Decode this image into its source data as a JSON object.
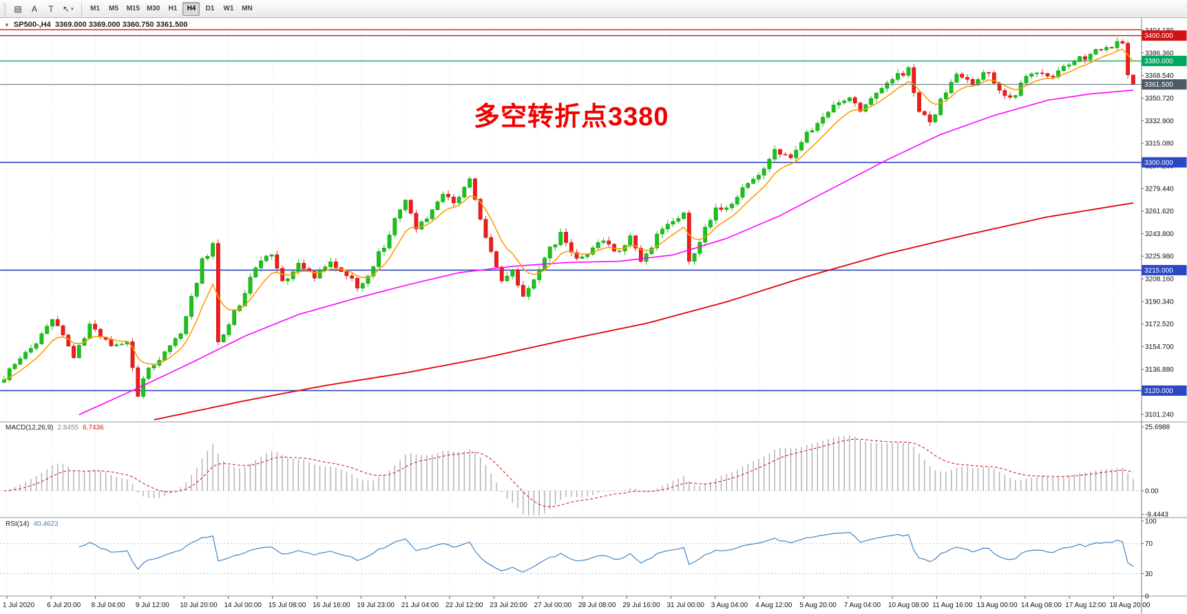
{
  "toolbar": {
    "tools": [
      {
        "name": "chart-window-icon",
        "glyph": "▤"
      },
      {
        "name": "text-annotation-button",
        "glyph": "A"
      },
      {
        "name": "textbox-button",
        "glyph": "T"
      },
      {
        "name": "cursor-tool-button",
        "glyph": "↖",
        "dropdown": "▾"
      }
    ],
    "timeframes": [
      {
        "label": "M1"
      },
      {
        "label": "M5"
      },
      {
        "label": "M15"
      },
      {
        "label": "M30"
      },
      {
        "label": "H1"
      },
      {
        "label": "H4",
        "active": true
      },
      {
        "label": "D1"
      },
      {
        "label": "W1"
      },
      {
        "label": "MN"
      }
    ]
  },
  "chart": {
    "collapse_icon": "▼",
    "header": "SP500-,H4  3369.000 3369.000 3360.750 3361.500",
    "annotation": "多空转折点3380"
  },
  "chart_data": {
    "type": "candlestick",
    "symbol": "SP500-",
    "timeframe": "H4",
    "last_ohlc": {
      "open": 3369.0,
      "high": 3369.0,
      "low": 3360.75,
      "close": 3361.5
    },
    "bars": 212,
    "up_color": "#19c319",
    "up_stroke": "#0e9a0e",
    "down_color": "#ef1c1c",
    "down_stroke": "#c01010",
    "price_axis_ticks": [
      "3404.180",
      "3386.360",
      "3368.540",
      "3350.720",
      "3332.900",
      "3315.080",
      "3297.260",
      "3279.440",
      "3261.620",
      "3243.800",
      "3225.980",
      "3208.160",
      "3190.340",
      "3172.520",
      "3154.700",
      "3136.880",
      "3119.060",
      "3101.240"
    ],
    "horizontal_lines": [
      {
        "price": 3404.6,
        "color": "#cf1212",
        "badge": null
      },
      {
        "price": 3400.0,
        "color": "#cf1212",
        "badge": "3400.000"
      },
      {
        "price": 3380.0,
        "color": "#00a85f",
        "badge": "3380.000"
      },
      {
        "price": 3300.0,
        "color": "#2b47c4",
        "badge": "3300.000"
      },
      {
        "price": 3215.0,
        "color": "#2b47c4",
        "badge": "3215.000"
      },
      {
        "price": 3120.0,
        "color": "#2b47c4",
        "badge": "3120.000"
      }
    ],
    "current_price": {
      "value": 3361.5,
      "badge": "3361.500",
      "color": "#4e5b66"
    },
    "price_waypoints": [
      [
        0,
        3130
      ],
      [
        3,
        3146
      ],
      [
        6,
        3158
      ],
      [
        9,
        3178
      ],
      [
        11,
        3165
      ],
      [
        13,
        3147
      ],
      [
        16,
        3170
      ],
      [
        18,
        3162
      ],
      [
        20,
        3155
      ],
      [
        23,
        3158
      ],
      [
        25,
        3116
      ],
      [
        26,
        3130
      ],
      [
        28,
        3141
      ],
      [
        30,
        3152
      ],
      [
        33,
        3165
      ],
      [
        35,
        3192
      ],
      [
        37,
        3222
      ],
      [
        39,
        3235
      ],
      [
        40,
        3157
      ],
      [
        42,
        3172
      ],
      [
        45,
        3198
      ],
      [
        47,
        3218
      ],
      [
        50,
        3228
      ],
      [
        52,
        3206
      ],
      [
        55,
        3218
      ],
      [
        58,
        3211
      ],
      [
        61,
        3222
      ],
      [
        64,
        3212
      ],
      [
        66,
        3201
      ],
      [
        68,
        3212
      ],
      [
        71,
        3235
      ],
      [
        73,
        3255
      ],
      [
        75,
        3268
      ],
      [
        77,
        3249
      ],
      [
        80,
        3262
      ],
      [
        82,
        3275
      ],
      [
        84,
        3268
      ],
      [
        87,
        3288
      ],
      [
        89,
        3256
      ],
      [
        91,
        3228
      ],
      [
        93,
        3206
      ],
      [
        95,
        3213
      ],
      [
        97,
        3196
      ],
      [
        100,
        3216
      ],
      [
        102,
        3232
      ],
      [
        104,
        3243
      ],
      [
        107,
        3222
      ],
      [
        109,
        3230
      ],
      [
        112,
        3238
      ],
      [
        114,
        3228
      ],
      [
        117,
        3241
      ],
      [
        119,
        3223
      ],
      [
        122,
        3241
      ],
      [
        124,
        3252
      ],
      [
        127,
        3258
      ],
      [
        128,
        3222
      ],
      [
        131,
        3248
      ],
      [
        133,
        3262
      ],
      [
        136,
        3269
      ],
      [
        139,
        3283
      ],
      [
        142,
        3296
      ],
      [
        144,
        3308
      ],
      [
        147,
        3306
      ],
      [
        150,
        3322
      ],
      [
        152,
        3331
      ],
      [
        155,
        3343
      ],
      [
        158,
        3353
      ],
      [
        160,
        3339
      ],
      [
        163,
        3353
      ],
      [
        166,
        3366
      ],
      [
        169,
        3373
      ],
      [
        171,
        3341
      ],
      [
        173,
        3332
      ],
      [
        176,
        3356
      ],
      [
        178,
        3368
      ],
      [
        181,
        3362
      ],
      [
        183,
        3373
      ],
      [
        186,
        3359
      ],
      [
        188,
        3349
      ],
      [
        191,
        3366
      ],
      [
        193,
        3373
      ],
      [
        196,
        3369
      ],
      [
        199,
        3379
      ],
      [
        202,
        3383
      ],
      [
        205,
        3389
      ],
      [
        207,
        3392
      ],
      [
        209,
        3396
      ],
      [
        210,
        3369
      ],
      [
        211,
        3361.5
      ]
    ],
    "overlays": {
      "ema_fast": {
        "color": "#ff9c00",
        "period": 8
      },
      "ma_mid": {
        "color": "#ff00ff",
        "waypoints": [
          [
            14,
            3101
          ],
          [
            25,
            3122
          ],
          [
            35,
            3142
          ],
          [
            45,
            3163
          ],
          [
            55,
            3180
          ],
          [
            65,
            3192
          ],
          [
            75,
            3203
          ],
          [
            85,
            3213
          ],
          [
            95,
            3218
          ],
          [
            105,
            3221
          ],
          [
            115,
            3222
          ],
          [
            125,
            3227
          ],
          [
            135,
            3240
          ],
          [
            145,
            3258
          ],
          [
            155,
            3280
          ],
          [
            165,
            3302
          ],
          [
            175,
            3322
          ],
          [
            185,
            3337
          ],
          [
            195,
            3349
          ],
          [
            203,
            3354
          ],
          [
            211,
            3357
          ]
        ]
      },
      "ma_slow": {
        "color": "#e00000",
        "waypoints": [
          [
            28,
            3097
          ],
          [
            45,
            3112
          ],
          [
            60,
            3124
          ],
          [
            75,
            3134
          ],
          [
            90,
            3146
          ],
          [
            105,
            3160
          ],
          [
            120,
            3173
          ],
          [
            135,
            3190
          ],
          [
            150,
            3210
          ],
          [
            165,
            3228
          ],
          [
            180,
            3243
          ],
          [
            195,
            3257
          ],
          [
            211,
            3268
          ]
        ]
      }
    },
    "macd": {
      "label": "MACD(12,26,9)",
      "value_main": "2.8455",
      "value_signal": "6.7436",
      "axis_ticks": [
        "25.6988",
        "0.00",
        "-9.4443"
      ],
      "histogram_color": "#adadad",
      "signal_color": "#cf1f1f"
    },
    "rsi": {
      "label": "RSI(14)",
      "value": "40.4623",
      "axis_ticks": [
        "100",
        "70",
        "30",
        "0"
      ],
      "levels": [
        70,
        30
      ],
      "line_color": "#3f85c6"
    },
    "time_labels": [
      "1 Jul 2020",
      "6 Jul 20:00",
      "8 Jul 04:00",
      "9 Jul 12:00",
      "10 Jul 20:00",
      "14 Jul 00:00",
      "15 Jul 08:00",
      "16 Jul 16:00",
      "19 Jul 23:00",
      "21 Jul 04:00",
      "22 Jul 12:00",
      "23 Jul 20:00",
      "27 Jul 00:00",
      "28 Jul 08:00",
      "29 Jul 16:00",
      "31 Jul 00:00",
      "3 Aug 04:00",
      "4 Aug 12:00",
      "5 Aug 20:00",
      "7 Aug 04:00",
      "10 Aug 08:00",
      "11 Aug 16:00",
      "13 Aug 00:00",
      "14 Aug 08:00",
      "17 Aug 12:00",
      "18 Aug 20:00"
    ]
  }
}
